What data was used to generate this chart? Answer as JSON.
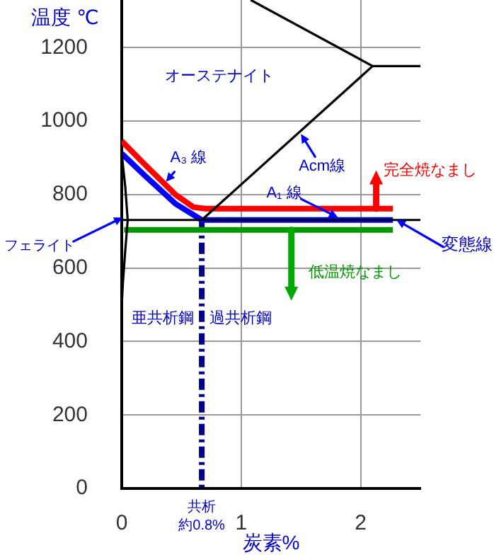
{
  "chart_data": {
    "type": "line",
    "xlabel": "炭素%",
    "ylabel": "温度 ℃",
    "xlim": [
      0,
      2.5
    ],
    "ylim": [
      0,
      1330
    ],
    "xticks": [
      0,
      1,
      2
    ],
    "yticks": [
      0,
      200,
      400,
      600,
      800,
      1000,
      1200
    ],
    "grid": true,
    "legend": false,
    "marker": "none",
    "series": [
      {
        "color": "#000000",
        "x": [
          0.67,
          2.1
        ],
        "values": [
          731,
          1150
        ]
      },
      {
        "color": "#000000",
        "x": [
          1.08,
          2.1
        ],
        "values": [
          1330,
          1150
        ]
      },
      {
        "color": "#000000",
        "x": [
          2.1,
          2.5
        ],
        "values": [
          1150,
          1150
        ]
      },
      {
        "color": "#000000",
        "x": [
          0,
          2.5
        ],
        "values": [
          731,
          731
        ]
      },
      {
        "color": "#000000",
        "x": [
          0,
          0.03,
          0.05,
          0.03,
          0.01,
          0
        ],
        "values": [
          912,
          820,
          731,
          650,
          560,
          500
        ]
      },
      {
        "color": "#ff0000",
        "x": [
          0,
          0.2,
          0.45,
          0.6,
          0.7,
          2.27
        ],
        "values": [
          946,
          880,
          800,
          766,
          762,
          762
        ]
      },
      {
        "color": "#0000ff",
        "x": [
          0,
          0.2,
          0.45,
          0.67,
          2.27
        ],
        "values": [
          912,
          850,
          775,
          731,
          731
        ]
      },
      {
        "color": "#009900",
        "x": [
          0.02,
          2.27
        ],
        "values": [
          704,
          704
        ]
      },
      {
        "color": "#00008b",
        "x": [
          0.67,
          0.67
        ],
        "values": [
          731,
          0
        ],
        "line_style": "dashed"
      }
    ],
    "annotations": [
      "オーステナイト",
      {
        "text": "A₃ 線",
        "x": 0.37,
        "y": 835
      },
      {
        "text": "Acm線",
        "x": 1.5,
        "y": 965
      },
      {
        "text": "A₁ 線",
        "x": 1.81,
        "y": 738
      },
      {
        "text": "完全焼なまし",
        "x": 2.13,
        "y": 762
      },
      {
        "text": "変態線",
        "x": 2.3,
        "y": 731
      },
      {
        "text": "フェライト",
        "x": 0.01,
        "y": 738
      },
      {
        "text": "低温焼なまし",
        "x": 1.42,
        "y": 704
      },
      "亜共析鋼",
      "過共析鋼",
      {
        "text": "共析",
        "x": 0.67,
        "y": 0
      },
      {
        "text": "約0.8%",
        "x": 0.67,
        "y": 0
      }
    ]
  }
}
